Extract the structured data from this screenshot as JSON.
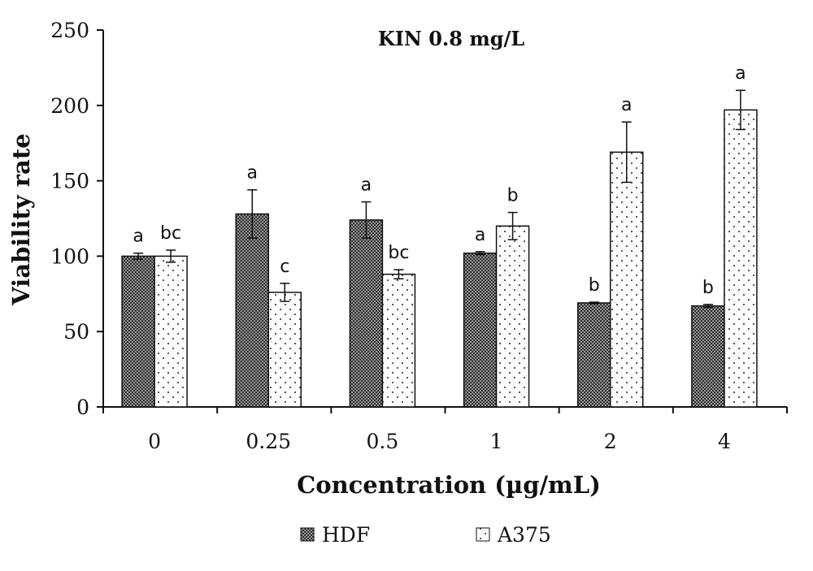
{
  "chart_data": {
    "type": "bar",
    "title": "KIN 0.8 mg/L",
    "xlabel": "Concentration (µg/mL)",
    "ylabel": "Viability rate",
    "ylim": [
      0,
      250
    ],
    "yticks": [
      0,
      50,
      100,
      150,
      200,
      250
    ],
    "categories": [
      "0",
      "0.25",
      "0.5",
      "1",
      "2",
      "4"
    ],
    "grid": false,
    "legend_position": "bottom",
    "series": [
      {
        "name": "HDF",
        "pattern": "dense-checker",
        "color": "#555555",
        "values": [
          100,
          128,
          124,
          102,
          69,
          67
        ],
        "errors": [
          2,
          16,
          12,
          1,
          0.5,
          1
        ],
        "sig_labels": [
          "a",
          "a",
          "a",
          "a",
          "b",
          "b"
        ]
      },
      {
        "name": "A375",
        "pattern": "sparse-dots",
        "color": "#ffffff",
        "values": [
          100,
          76,
          88,
          120,
          169,
          197
        ],
        "errors": [
          4,
          6,
          3,
          9,
          20,
          13
        ],
        "sig_labels": [
          "bc",
          "c",
          "bc",
          "b",
          "a",
          "a"
        ]
      }
    ]
  }
}
